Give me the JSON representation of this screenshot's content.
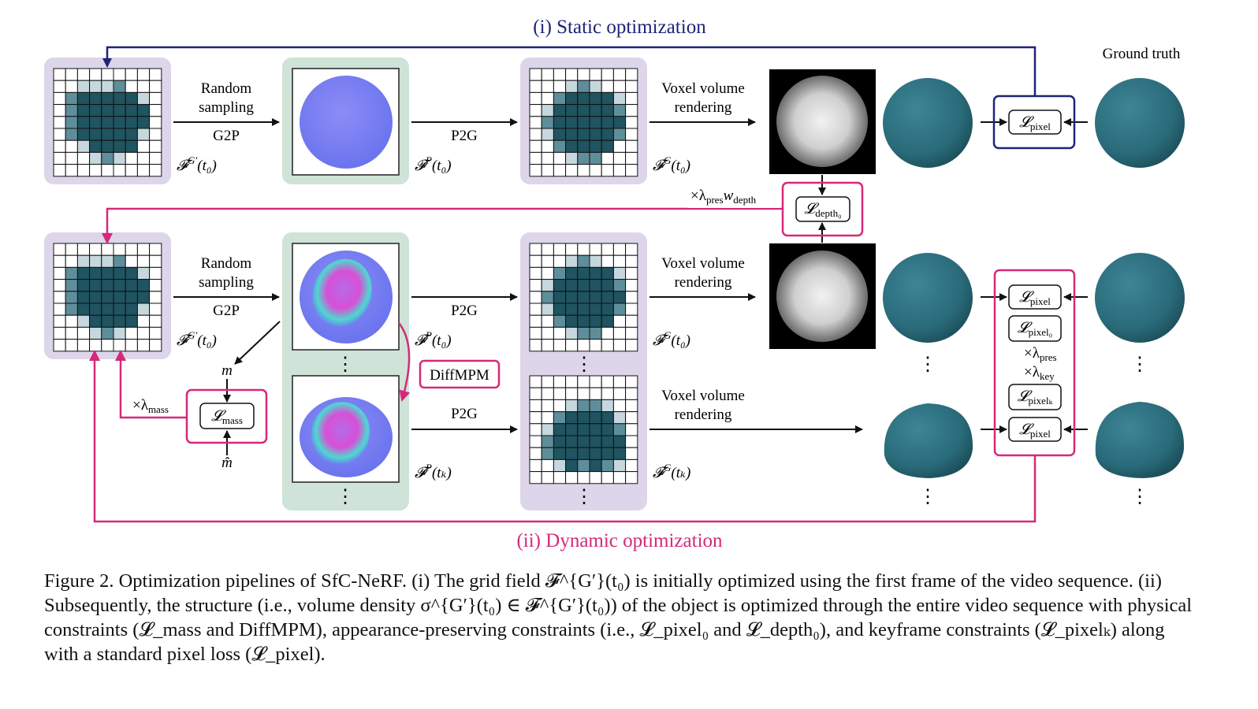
{
  "titles": {
    "static": "(i) Static optimization",
    "dynamic": "(ii) Dynamic optimization",
    "ground_truth": "Ground truth"
  },
  "colors": {
    "static_accent": "#1f2378",
    "dynamic_accent": "#d6287a",
    "grid_panel": "#ddd6ea",
    "particle_panel": "#cfe3d8",
    "voxel_dark": "#1f5460",
    "voxel_mid": "#5f8e9b",
    "voxel_light": "#c6d8de",
    "sphere": "#2a6a7b"
  },
  "steps": {
    "random_sampling_line1": "Random",
    "random_sampling_line2": "sampling",
    "g2p": "G2P",
    "p2g": "P2G",
    "voxel_line1": "Voxel volume",
    "voxel_line2": "rendering",
    "diffmpm": "DiffMPM"
  },
  "fields": {
    "grid_field": "𝓕",
    "grid_sup": "G′",
    "particle_sup": "P",
    "render_sup": "G",
    "t0": "(t₀)",
    "tk": "(tₖ)"
  },
  "losses": {
    "L": "𝓛",
    "pixel": "pixel",
    "pixel0": "pixel₀",
    "pixelk": "pixelₖ",
    "depth0": "depth₀",
    "mass": "mass"
  },
  "weights": {
    "pres_depth": "×λ",
    "pres_depth_sub1": "pres",
    "w": "w",
    "depth_sub": "depth",
    "lambda_pres": "×λ",
    "pres_sub": "pres",
    "lambda_key": "×λ",
    "key_sub": "key",
    "lambda_mass": "×λ",
    "mass_sub": "mass"
  },
  "symbols": {
    "m": "m",
    "m_hat": "m̂",
    "vdots": "⋮"
  },
  "caption": {
    "p1": "Figure 2. Optimization pipelines of SfC-NeRF. (i) The grid field 𝓕^{G′}(t₀) is initially optimized using the first frame of the video sequence. (ii) Subsequently, the structure (i.e., volume density σ^{G′}(t₀) ∈ 𝓕^{G′}(t₀)) of the object is optimized through the entire video sequence with physical constraints (𝓛_mass and DiffMPM), appearance-preserving constraints (i.e., 𝓛_pixel₀ and 𝓛_depth₀), and keyframe constraints (𝓛_pixelₖ) along with a standard pixel loss (𝓛_pixel)."
  }
}
